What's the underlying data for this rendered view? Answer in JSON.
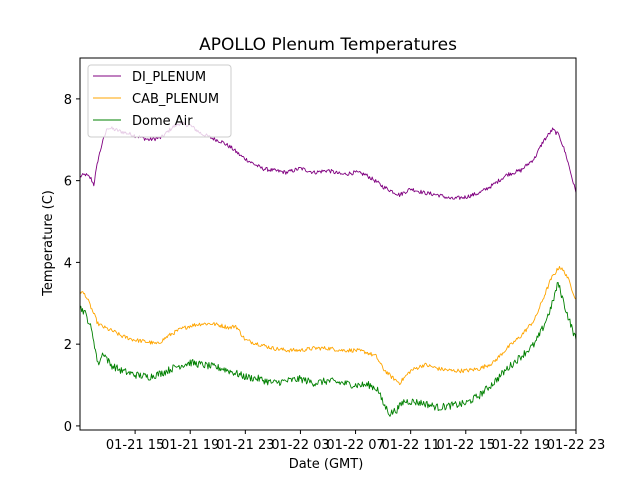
{
  "chart_data": {
    "type": "line",
    "title": "APOLLO Plenum Temperatures",
    "xlabel": "Date (GMT)",
    "ylabel": "Temperature (C)",
    "x_unit": "hours since 2021-01-21 11:00 GMT",
    "xlim": [
      0,
      36
    ],
    "ylim": [
      -0.1,
      9.0
    ],
    "yticks": [
      0,
      2,
      4,
      6,
      8
    ],
    "xticks": [
      {
        "x": 4,
        "label": "01-21 15"
      },
      {
        "x": 8,
        "label": "01-21 19"
      },
      {
        "x": 12,
        "label": "01-21 23"
      },
      {
        "x": 16,
        "label": "01-22 03"
      },
      {
        "x": 20,
        "label": "01-22 07"
      },
      {
        "x": 24,
        "label": "01-22 11"
      },
      {
        "x": 28,
        "label": "01-22 15"
      },
      {
        "x": 32,
        "label": "01-22 19"
      },
      {
        "x": 36,
        "label": "01-22 23"
      }
    ],
    "grid": false,
    "legend_position": "top-left",
    "series": [
      {
        "name": "DI_PLENUM",
        "color": "#800080",
        "x": [
          0,
          0.4,
          0.8,
          1.0,
          1.3,
          1.6,
          2.0,
          3.0,
          4.0,
          5.0,
          5.9,
          6.7,
          7.2,
          8.0,
          8.8,
          9.5,
          10.3,
          11.0,
          11.7,
          12.4,
          13.2,
          14.0,
          15.0,
          16.0,
          17.0,
          18.0,
          19.0,
          20.0,
          20.7,
          21.4,
          22.0,
          22.6,
          23.2,
          24.0,
          25.0,
          26.0,
          27.0,
          28.0,
          29.0,
          30.0,
          31.0,
          32.0,
          33.0,
          33.6,
          34.3,
          34.8,
          35.3,
          36.0
        ],
        "values": [
          6.1,
          6.15,
          6.05,
          5.9,
          6.5,
          6.9,
          7.3,
          7.2,
          7.1,
          7.0,
          7.05,
          7.3,
          7.4,
          7.35,
          7.15,
          7.05,
          6.95,
          6.8,
          6.6,
          6.45,
          6.3,
          6.25,
          6.2,
          6.3,
          6.2,
          6.25,
          6.15,
          6.2,
          6.15,
          6.0,
          5.85,
          5.75,
          5.65,
          5.8,
          5.7,
          5.65,
          5.55,
          5.6,
          5.7,
          5.9,
          6.15,
          6.25,
          6.55,
          6.95,
          7.25,
          7.1,
          6.6,
          5.7
        ]
      },
      {
        "name": "CAB_PLENUM",
        "color": "#FFA500",
        "x": [
          0,
          0.4,
          0.8,
          1.3,
          1.8,
          2.5,
          3.0,
          4.0,
          5.0,
          5.6,
          6.4,
          7.2,
          8.0,
          8.8,
          9.6,
          10.3,
          10.9,
          11.3,
          12.0,
          13.0,
          14.0,
          15.0,
          16.0,
          17.0,
          18.0,
          19.0,
          20.0,
          20.8,
          21.5,
          22.0,
          22.6,
          23.2,
          24.0,
          25.0,
          26.0,
          27.0,
          28.0,
          29.0,
          30.0,
          31.0,
          32.0,
          33.0,
          33.6,
          34.2,
          34.8,
          35.3,
          36.0
        ],
        "values": [
          3.3,
          3.2,
          2.9,
          2.5,
          2.4,
          2.3,
          2.2,
          2.1,
          2.05,
          2.0,
          2.2,
          2.35,
          2.45,
          2.5,
          2.5,
          2.45,
          2.4,
          2.45,
          2.1,
          2.0,
          1.9,
          1.85,
          1.85,
          1.9,
          1.9,
          1.85,
          1.85,
          1.8,
          1.7,
          1.4,
          1.2,
          1.05,
          1.35,
          1.5,
          1.4,
          1.35,
          1.35,
          1.4,
          1.55,
          1.9,
          2.2,
          2.6,
          3.1,
          3.6,
          3.9,
          3.7,
          3.1
        ]
      },
      {
        "name": "Dome Air",
        "color": "#008000",
        "x": [
          0,
          0.3,
          0.7,
          1.0,
          1.3,
          1.7,
          2.2,
          3.0,
          4.0,
          5.0,
          6.0,
          7.0,
          8.0,
          8.8,
          9.6,
          10.4,
          11.2,
          12.0,
          13.0,
          14.0,
          15.0,
          16.0,
          17.0,
          18.0,
          19.0,
          20.0,
          21.0,
          21.6,
          22.0,
          22.5,
          23.0,
          23.5,
          24.0,
          25.0,
          26.0,
          27.0,
          28.0,
          29.0,
          30.0,
          31.0,
          32.0,
          33.0,
          33.6,
          34.2,
          34.7,
          35.3,
          36.0
        ],
        "values": [
          2.9,
          2.8,
          2.5,
          2.1,
          1.5,
          1.8,
          1.5,
          1.35,
          1.25,
          1.2,
          1.3,
          1.45,
          1.55,
          1.5,
          1.45,
          1.4,
          1.3,
          1.2,
          1.15,
          1.05,
          1.1,
          1.15,
          1.05,
          1.1,
          1.05,
          1.0,
          1.0,
          0.9,
          0.55,
          0.3,
          0.4,
          0.6,
          0.6,
          0.55,
          0.45,
          0.5,
          0.55,
          0.75,
          1.05,
          1.4,
          1.7,
          2.0,
          2.4,
          2.9,
          3.5,
          2.8,
          2.1
        ]
      }
    ]
  }
}
